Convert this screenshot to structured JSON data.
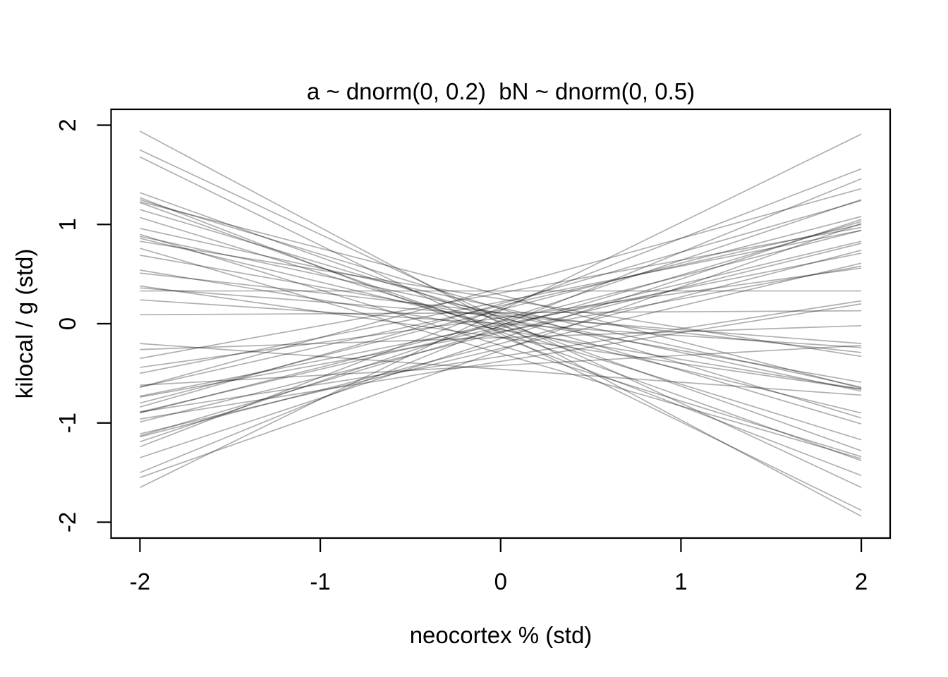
{
  "chart_data": {
    "type": "line",
    "title": "a ~ dnorm(0, 0.2)  bN ~ dnorm(0, 0.5)",
    "xlabel": "neocortex % (std)",
    "ylabel": "kilocal / g (std)",
    "xlim": [
      -2,
      2
    ],
    "ylim": [
      -2,
      2
    ],
    "axis_expand_fraction": 0.04,
    "x_ticks": [
      -2,
      -1,
      0,
      1,
      2
    ],
    "y_ticks": [
      -2,
      -1,
      0,
      1,
      2
    ],
    "grid": false,
    "legend": "none",
    "line_x_range": [
      -2,
      2
    ],
    "n_lines": 50,
    "line_model": "y = a + bN * x, a ~ Normal(0, 0.2), bN ~ Normal(0, 0.5)",
    "colors": {
      "background": "#ffffff",
      "axis": "#000000",
      "line": "#000000",
      "line_alpha": 0.31
    },
    "series": [
      {
        "a": 0.0,
        "b": -0.97
      },
      {
        "a": 0.13,
        "b": 0.89
      },
      {
        "a": 0.16,
        "b": 0.7
      },
      {
        "a": 0.05,
        "b": -0.85
      },
      {
        "a": -0.1,
        "b": -0.89
      },
      {
        "a": -0.02,
        "b": 0.74
      },
      {
        "a": 0.02,
        "b": -0.65
      },
      {
        "a": -0.13,
        "b": -0.7
      },
      {
        "a": 0.15,
        "b": -0.55
      },
      {
        "a": -0.08,
        "b": -0.65
      },
      {
        "a": 0.07,
        "b": -0.54
      },
      {
        "a": -0.05,
        "b": -0.56
      },
      {
        "a": 0.03,
        "b": 0.61
      },
      {
        "a": 0.16,
        "b": -0.4
      },
      {
        "a": -0.22,
        "b": -0.56
      },
      {
        "a": 0.1,
        "b": -0.39
      },
      {
        "a": -0.02,
        "b": -0.44
      },
      {
        "a": 0.25,
        "b": -0.29
      },
      {
        "a": -0.3,
        "b": -0.53
      },
      {
        "a": 0.05,
        "b": -0.32
      },
      {
        "a": -0.06,
        "b": -0.3
      },
      {
        "a": 0.11,
        "b": -0.2
      },
      {
        "a": -0.14,
        "b": -0.26
      },
      {
        "a": 0.08,
        "b": -0.14
      },
      {
        "a": 0.33,
        "b": 0.0
      },
      {
        "a": 0.0,
        "b": -0.12
      },
      {
        "a": 0.29,
        "b": -0.47
      },
      {
        "a": 0.11,
        "b": 0.01
      },
      {
        "a": 0.06,
        "b": 0.25
      },
      {
        "a": -0.01,
        "b": 0.36
      },
      {
        "a": -0.08,
        "b": 0.33
      },
      {
        "a": -0.14,
        "b": 0.06
      },
      {
        "a": 0.18,
        "b": 0.41
      },
      {
        "a": -0.33,
        "b": 0.28
      },
      {
        "a": -0.2,
        "b": 0.47
      },
      {
        "a": -0.42,
        "b": 0.1
      },
      {
        "a": -0.05,
        "b": 0.54
      },
      {
        "a": 0.36,
        "b": 0.5
      },
      {
        "a": -0.25,
        "b": 0.43
      },
      {
        "a": -0.15,
        "b": 0.6
      },
      {
        "a": 0.22,
        "b": 0.36
      },
      {
        "a": -0.38,
        "b": 0.29
      },
      {
        "a": 0.02,
        "b": 0.46
      },
      {
        "a": -0.09,
        "b": 0.45
      },
      {
        "a": -0.27,
        "b": 0.64
      },
      {
        "a": 0.14,
        "b": 0.47
      },
      {
        "a": -0.46,
        "b": -0.13
      },
      {
        "a": 0.31,
        "b": 0.33
      },
      {
        "a": 0.2,
        "b": 0.52
      },
      {
        "a": -0.03,
        "b": 0.43
      }
    ]
  }
}
